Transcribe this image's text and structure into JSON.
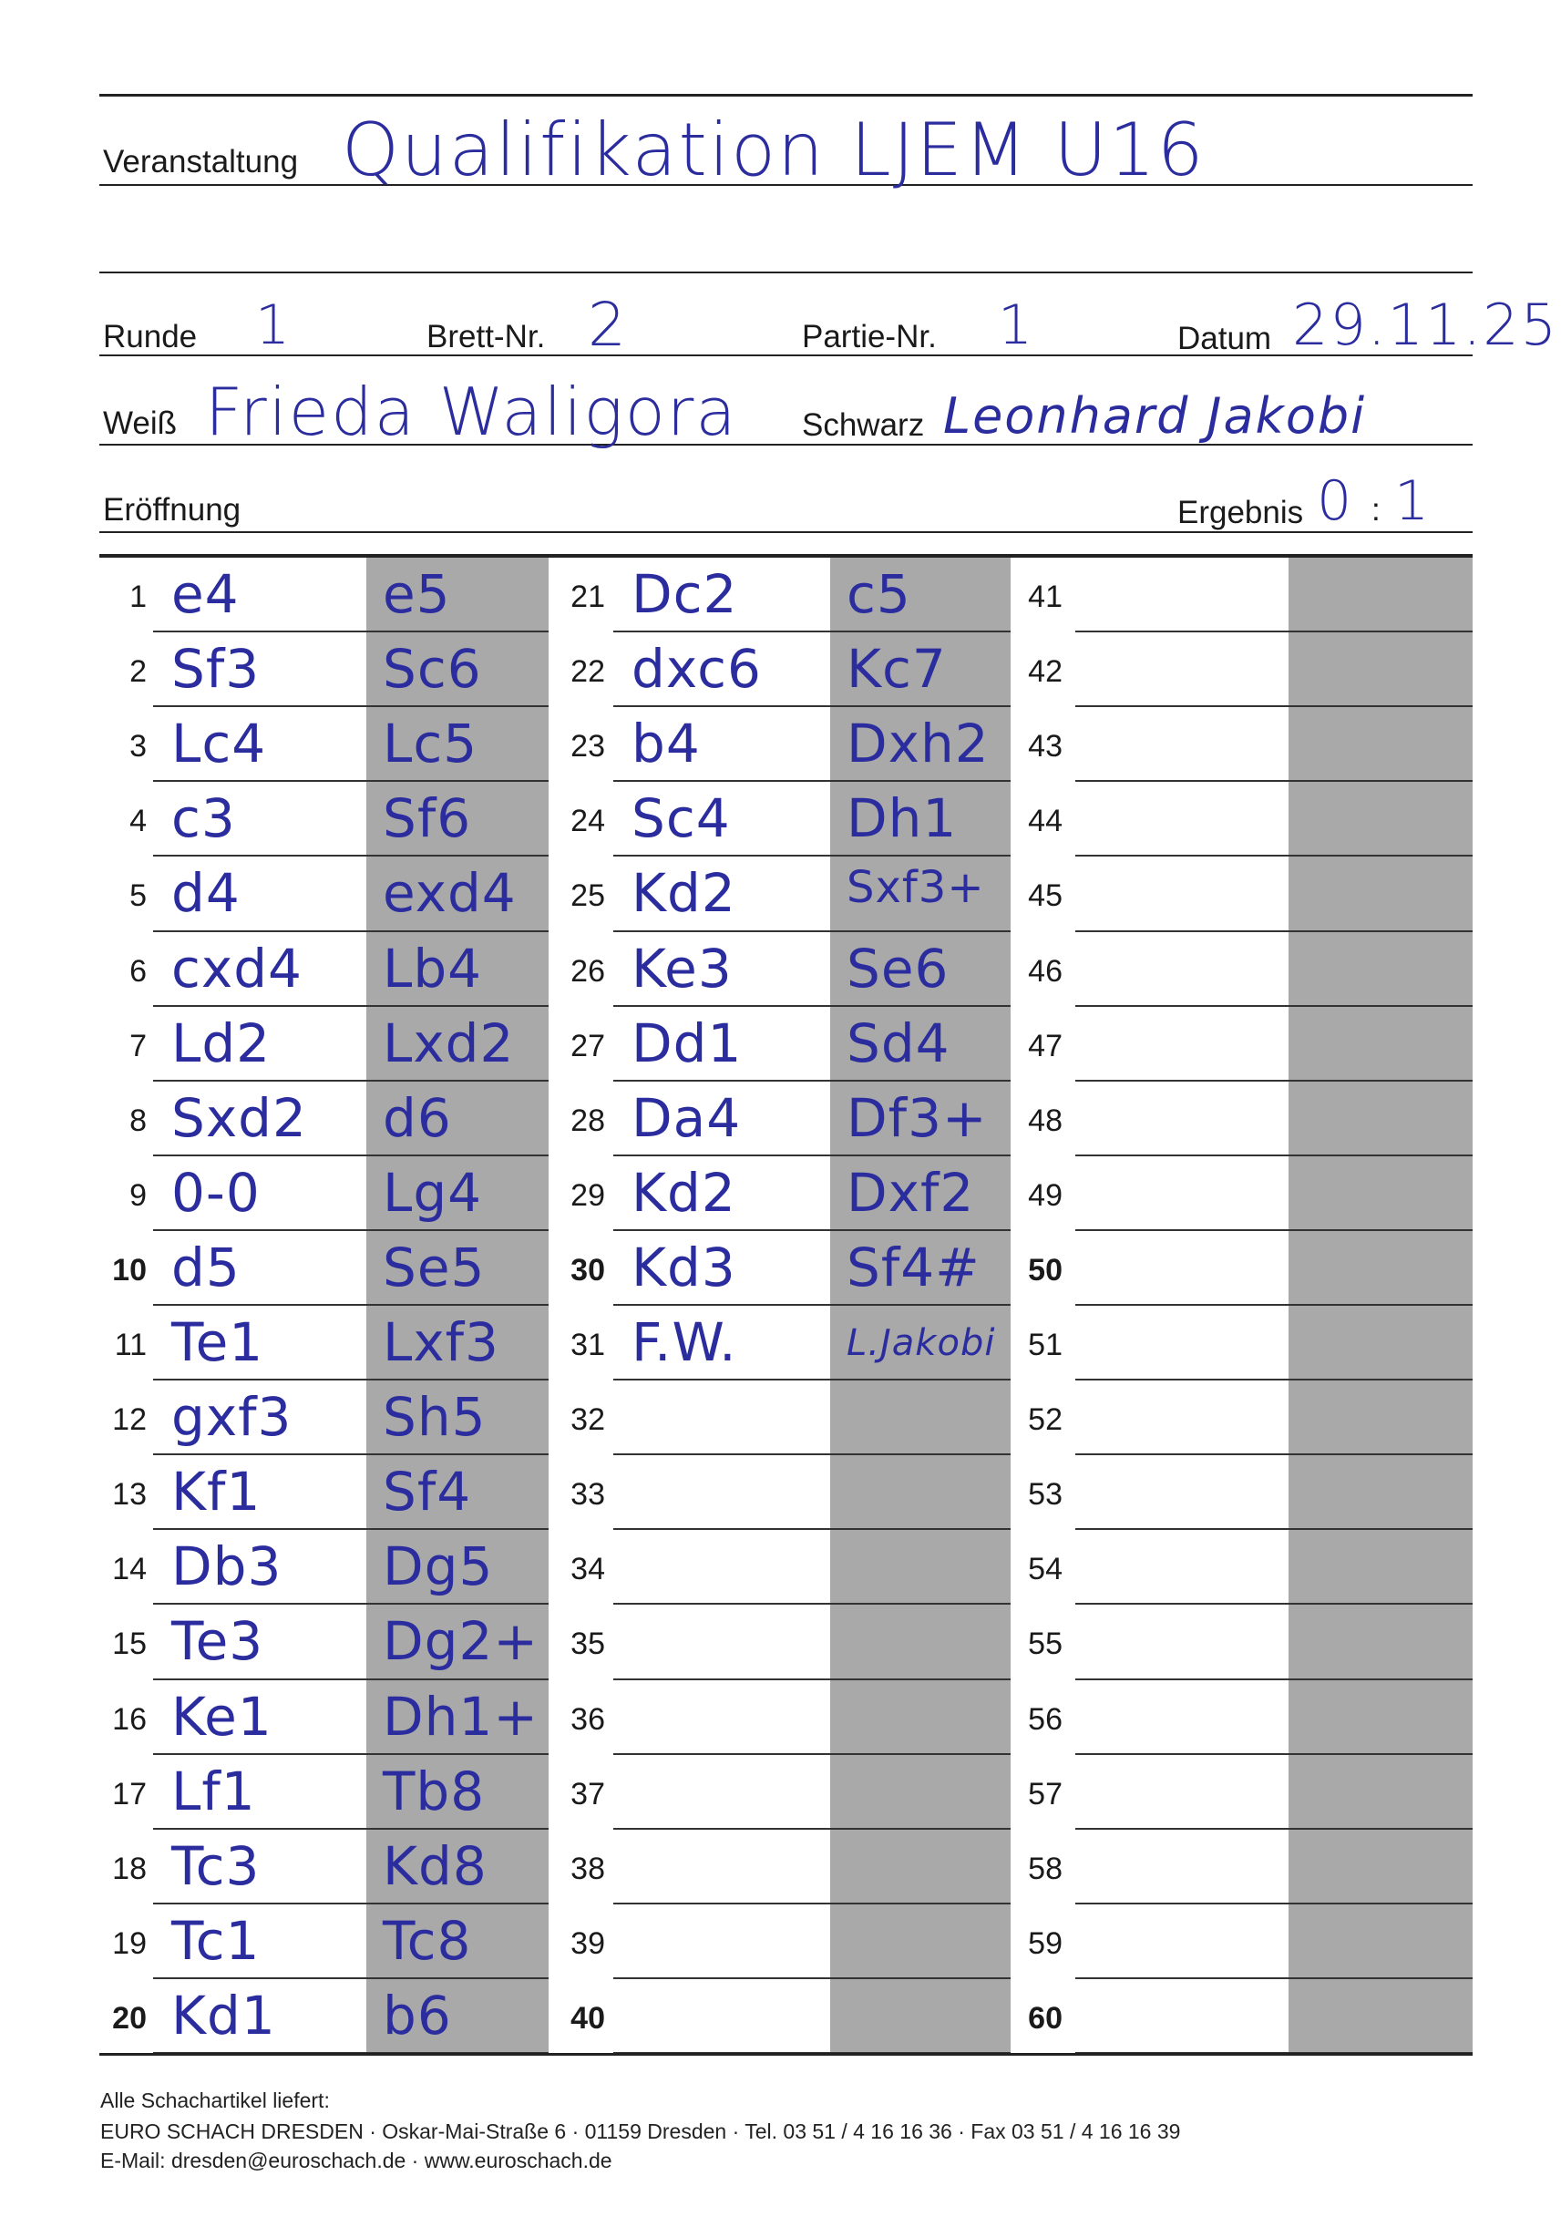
{
  "header": {
    "event_label": "Veranstaltung",
    "event_value": "Qualifikation LJEM U16",
    "round_label": "Runde",
    "round_value": "1",
    "board_label": "Brett-Nr.",
    "board_value": "2",
    "game_label": "Partie-Nr.",
    "game_value": "1",
    "date_label": "Datum",
    "date_value": "29.11.25",
    "white_label": "Weiß",
    "white_value": "Frieda Waligora",
    "black_label": "Schwarz",
    "black_value": "Leonhard Jakobi",
    "opening_label": "Eröffnung",
    "opening_value": "",
    "result_label": "Ergebnis",
    "result_white": "0",
    "result_sep": ":",
    "result_black": "1"
  },
  "moves": [
    {
      "n": "1",
      "w": "e4",
      "b": "e5"
    },
    {
      "n": "2",
      "w": "Sf3",
      "b": "Sc6"
    },
    {
      "n": "3",
      "w": "Lc4",
      "b": "Lc5"
    },
    {
      "n": "4",
      "w": "c3",
      "b": "Sf6"
    },
    {
      "n": "5",
      "w": "d4",
      "b": "exd4"
    },
    {
      "n": "6",
      "w": "cxd4",
      "b": "Lb4"
    },
    {
      "n": "7",
      "w": "Ld2",
      "b": "Lxd2"
    },
    {
      "n": "8",
      "w": "Sxd2",
      "b": "d6"
    },
    {
      "n": "9",
      "w": "0-0",
      "b": "Lg4"
    },
    {
      "n": "10",
      "w": "d5",
      "b": "Se5"
    },
    {
      "n": "11",
      "w": "Te1",
      "b": "Lxf3"
    },
    {
      "n": "12",
      "w": "gxf3",
      "b": "Sh5"
    },
    {
      "n": "13",
      "w": "Kf1",
      "b": "Sf4"
    },
    {
      "n": "14",
      "w": "Db3",
      "b": "Dg5"
    },
    {
      "n": "15",
      "w": "Te3",
      "b": "Dg2+"
    },
    {
      "n": "16",
      "w": "Ke1",
      "b": "Dh1+"
    },
    {
      "n": "17",
      "w": "Lf1",
      "b": "Tb8"
    },
    {
      "n": "18",
      "w": "Tc3",
      "b": "Kd8"
    },
    {
      "n": "19",
      "w": "Tc1",
      "b": "Tc8"
    },
    {
      "n": "20",
      "w": "Kd1",
      "b": "b6"
    },
    {
      "n": "21",
      "w": "Dc2",
      "b": "c5"
    },
    {
      "n": "22",
      "w": "dxc6",
      "b": "Kc7"
    },
    {
      "n": "23",
      "w": "b4",
      "b": "Dxh2"
    },
    {
      "n": "24",
      "w": "Sc4",
      "b": "Dh1"
    },
    {
      "n": "25",
      "w": "Kd2",
      "b": "Sxf3+"
    },
    {
      "n": "26",
      "w": "Ke3",
      "b": "Se6"
    },
    {
      "n": "27",
      "w": "Dd1",
      "b": "Sd4"
    },
    {
      "n": "28",
      "w": "Da4",
      "b": "Df3+"
    },
    {
      "n": "29",
      "w": "Kd2",
      "b": "Dxf2"
    },
    {
      "n": "30",
      "w": "Kd3",
      "b": "Sf4#"
    },
    {
      "n": "31",
      "w": "F.W.",
      "b": "L.Jakobi"
    },
    {
      "n": "32",
      "w": "",
      "b": ""
    },
    {
      "n": "33",
      "w": "",
      "b": ""
    },
    {
      "n": "34",
      "w": "",
      "b": ""
    },
    {
      "n": "35",
      "w": "",
      "b": ""
    },
    {
      "n": "36",
      "w": "",
      "b": ""
    },
    {
      "n": "37",
      "w": "",
      "b": ""
    },
    {
      "n": "38",
      "w": "",
      "b": ""
    },
    {
      "n": "39",
      "w": "",
      "b": ""
    },
    {
      "n": "40",
      "w": "",
      "b": ""
    },
    {
      "n": "41",
      "w": "",
      "b": ""
    },
    {
      "n": "42",
      "w": "",
      "b": ""
    },
    {
      "n": "43",
      "w": "",
      "b": ""
    },
    {
      "n": "44",
      "w": "",
      "b": ""
    },
    {
      "n": "45",
      "w": "",
      "b": ""
    },
    {
      "n": "46",
      "w": "",
      "b": ""
    },
    {
      "n": "47",
      "w": "",
      "b": ""
    },
    {
      "n": "48",
      "w": "",
      "b": ""
    },
    {
      "n": "49",
      "w": "",
      "b": ""
    },
    {
      "n": "50",
      "w": "",
      "b": ""
    },
    {
      "n": "51",
      "w": "",
      "b": ""
    },
    {
      "n": "52",
      "w": "",
      "b": ""
    },
    {
      "n": "53",
      "w": "",
      "b": ""
    },
    {
      "n": "54",
      "w": "",
      "b": ""
    },
    {
      "n": "55",
      "w": "",
      "b": ""
    },
    {
      "n": "56",
      "w": "",
      "b": ""
    },
    {
      "n": "57",
      "w": "",
      "b": ""
    },
    {
      "n": "58",
      "w": "",
      "b": ""
    },
    {
      "n": "59",
      "w": "",
      "b": ""
    },
    {
      "n": "60",
      "w": "",
      "b": ""
    }
  ],
  "footer": {
    "line1": "Alle Schachartikel liefert:",
    "line2": "EURO SCHACH DRESDEN · Oskar-Mai-Straße 6 · 01159 Dresden · Tel. 03 51 / 4 16 16 36 · Fax 03 51 / 4 16 16 39",
    "line3": "E-Mail: dresden@euroschach.de · www.euroschach.de"
  },
  "colors": {
    "ink": "#2b2d9e",
    "shade": "#a9a9a9"
  }
}
